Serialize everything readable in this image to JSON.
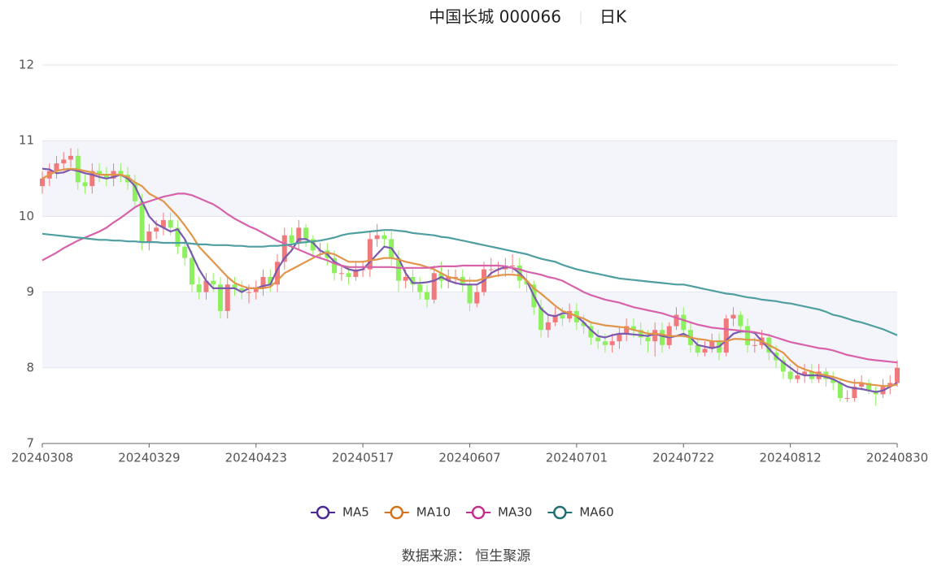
{
  "chart_data": {
    "type": "candlestick",
    "title": "中国长城 000066",
    "subtitle": "日K",
    "source": "数据来源： 恒生聚源",
    "categories": [
      "20240308",
      null,
      null,
      null,
      null,
      null,
      null,
      null,
      null,
      null,
      null,
      null,
      null,
      null,
      null,
      "20240329",
      null,
      null,
      null,
      null,
      null,
      null,
      null,
      null,
      null,
      null,
      null,
      null,
      null,
      null,
      "20240423",
      null,
      null,
      null,
      null,
      null,
      null,
      null,
      null,
      null,
      null,
      null,
      null,
      null,
      null,
      "20240517",
      null,
      null,
      null,
      null,
      null,
      null,
      null,
      null,
      null,
      null,
      null,
      null,
      null,
      null,
      "20240607",
      null,
      null,
      null,
      null,
      null,
      null,
      null,
      null,
      null,
      null,
      null,
      null,
      null,
      null,
      "20240701",
      null,
      null,
      null,
      null,
      null,
      null,
      null,
      null,
      null,
      null,
      null,
      null,
      null,
      null,
      "20240722",
      null,
      null,
      null,
      null,
      null,
      null,
      null,
      null,
      null,
      null,
      null,
      null,
      null,
      null,
      "20240812",
      null,
      null,
      null,
      null,
      null,
      null,
      null,
      null,
      null,
      null,
      null,
      null,
      null,
      null,
      "20240830"
    ],
    "open": [
      10.4,
      10.5,
      10.6,
      10.7,
      10.75,
      10.8,
      10.45,
      10.4,
      10.6,
      10.55,
      10.5,
      10.6,
      10.55,
      10.45,
      10.2,
      9.65,
      9.8,
      9.85,
      9.95,
      9.85,
      9.6,
      9.45,
      9.1,
      9.0,
      9.15,
      9.1,
      8.75,
      9.1,
      9.05,
      9.0,
      9.0,
      9.05,
      9.2,
      9.1,
      9.4,
      9.75,
      9.65,
      9.85,
      9.7,
      9.55,
      9.55,
      9.45,
      9.25,
      9.25,
      9.2,
      9.3,
      9.3,
      9.7,
      9.75,
      9.7,
      9.45,
      9.15,
      9.2,
      9.1,
      9.0,
      8.9,
      9.25,
      9.15,
      9.2,
      9.2,
      9.1,
      8.85,
      9.0,
      9.3,
      9.3,
      9.3,
      9.35,
      9.35,
      9.15,
      9.1,
      8.8,
      8.5,
      8.6,
      8.7,
      8.65,
      8.75,
      8.6,
      8.55,
      8.4,
      8.35,
      8.3,
      8.35,
      8.45,
      8.55,
      8.5,
      8.4,
      8.35,
      8.5,
      8.3,
      8.55,
      8.7,
      8.5,
      8.3,
      8.2,
      8.25,
      8.35,
      8.2,
      8.65,
      8.7,
      8.55,
      8.3,
      8.3,
      8.4,
      8.2,
      8.1,
      7.95,
      7.85,
      7.9,
      7.95,
      7.85,
      7.95,
      7.85,
      7.8,
      7.6,
      7.6,
      7.75,
      7.8,
      7.7,
      7.65,
      7.75,
      7.8
    ],
    "close": [
      10.5,
      10.6,
      10.7,
      10.75,
      10.8,
      10.45,
      10.4,
      10.6,
      10.55,
      10.5,
      10.6,
      10.55,
      10.45,
      10.2,
      9.65,
      9.8,
      9.85,
      9.95,
      9.85,
      9.6,
      9.45,
      9.1,
      9.0,
      9.15,
      9.1,
      8.75,
      9.1,
      9.05,
      9.0,
      9.0,
      9.05,
      9.2,
      9.1,
      9.4,
      9.75,
      9.65,
      9.85,
      9.7,
      9.55,
      9.55,
      9.45,
      9.25,
      9.25,
      9.2,
      9.3,
      9.3,
      9.7,
      9.75,
      9.7,
      9.45,
      9.15,
      9.2,
      9.1,
      9.0,
      8.9,
      9.25,
      9.15,
      9.2,
      9.2,
      9.1,
      8.85,
      9.0,
      9.3,
      9.3,
      9.3,
      9.35,
      9.35,
      9.15,
      9.1,
      8.8,
      8.5,
      8.6,
      8.7,
      8.65,
      8.75,
      8.6,
      8.55,
      8.4,
      8.35,
      8.3,
      8.35,
      8.45,
      8.55,
      8.5,
      8.4,
      8.35,
      8.5,
      8.3,
      8.55,
      8.7,
      8.5,
      8.3,
      8.2,
      8.25,
      8.35,
      8.2,
      8.65,
      8.7,
      8.55,
      8.3,
      8.3,
      8.4,
      8.2,
      8.1,
      7.95,
      7.85,
      7.9,
      7.95,
      7.85,
      7.95,
      7.85,
      7.8,
      7.6,
      7.6,
      7.75,
      7.8,
      7.7,
      7.65,
      7.75,
      7.8,
      8.0
    ],
    "high": [
      10.6,
      10.7,
      10.8,
      10.85,
      10.9,
      10.9,
      10.55,
      10.7,
      10.7,
      10.65,
      10.7,
      10.7,
      10.65,
      10.55,
      10.3,
      9.9,
      9.95,
      10.05,
      10.05,
      9.95,
      9.7,
      9.55,
      9.2,
      9.25,
      9.25,
      9.2,
      9.2,
      9.2,
      9.15,
      9.1,
      9.15,
      9.3,
      9.3,
      9.5,
      9.85,
      9.85,
      9.95,
      9.9,
      9.75,
      9.65,
      9.65,
      9.55,
      9.35,
      9.35,
      9.4,
      9.4,
      9.8,
      9.9,
      9.8,
      9.8,
      9.55,
      9.3,
      9.3,
      9.2,
      9.1,
      9.35,
      9.4,
      9.3,
      9.3,
      9.3,
      9.2,
      9.1,
      9.4,
      9.45,
      9.4,
      9.45,
      9.5,
      9.45,
      9.25,
      9.15,
      8.9,
      8.7,
      8.8,
      8.8,
      8.85,
      8.85,
      8.7,
      8.6,
      8.5,
      8.45,
      8.45,
      8.55,
      8.65,
      8.65,
      8.6,
      8.5,
      8.6,
      8.6,
      8.6,
      8.8,
      8.8,
      8.6,
      8.4,
      8.35,
      8.45,
      8.45,
      8.7,
      8.8,
      8.75,
      8.65,
      8.4,
      8.5,
      8.45,
      8.3,
      8.15,
      8.05,
      8.0,
      8.05,
      8.05,
      8.05,
      8.0,
      7.95,
      7.85,
      7.7,
      7.85,
      7.9,
      7.85,
      7.75,
      7.85,
      7.9,
      8.1
    ],
    "low": [
      10.3,
      10.4,
      10.5,
      10.6,
      10.65,
      10.35,
      10.3,
      10.3,
      10.45,
      10.4,
      10.4,
      10.45,
      10.35,
      10.1,
      9.55,
      9.55,
      9.7,
      9.75,
      9.75,
      9.5,
      9.35,
      9.0,
      8.9,
      8.9,
      9.0,
      8.65,
      8.65,
      8.95,
      8.9,
      8.85,
      8.9,
      8.95,
      9.0,
      9.0,
      9.3,
      9.55,
      9.55,
      9.6,
      9.45,
      9.45,
      9.35,
      9.15,
      9.15,
      9.1,
      9.15,
      9.2,
      9.2,
      9.6,
      9.6,
      9.35,
      9.0,
      9.05,
      9.0,
      8.9,
      8.8,
      8.85,
      9.05,
      9.05,
      9.1,
      9.0,
      8.75,
      8.8,
      8.95,
      9.2,
      9.2,
      9.2,
      9.25,
      9.05,
      9.0,
      8.7,
      8.4,
      8.4,
      8.55,
      8.55,
      8.6,
      8.5,
      8.45,
      8.3,
      8.25,
      8.2,
      8.2,
      8.25,
      8.35,
      8.4,
      8.3,
      8.2,
      8.15,
      8.2,
      8.25,
      8.5,
      8.4,
      8.2,
      8.15,
      8.15,
      8.2,
      8.1,
      8.15,
      8.55,
      8.45,
      8.2,
      8.2,
      8.25,
      8.1,
      8.0,
      7.85,
      7.8,
      7.8,
      7.8,
      7.8,
      7.8,
      7.75,
      7.7,
      7.55,
      7.55,
      7.55,
      7.7,
      7.65,
      7.5,
      7.6,
      7.65,
      7.75
    ],
    "up_color": "#f2797b",
    "down_color": "#8ff05f",
    "series": [
      {
        "name": "MA5",
        "color": "#7a5aae",
        "icon_color": "#4b2a93",
        "values": [
          10.63,
          10.62,
          10.57,
          10.58,
          10.62,
          10.6,
          10.57,
          10.55,
          10.52,
          10.5,
          10.52,
          10.55,
          10.5,
          10.4,
          10.2,
          10.0,
          9.9,
          9.85,
          9.8,
          9.83,
          9.7,
          9.5,
          9.3,
          9.15,
          9.05,
          9.05,
          9.05,
          9.05,
          9.0,
          9.05,
          9.05,
          9.08,
          9.1,
          9.3,
          9.45,
          9.55,
          9.7,
          9.7,
          9.65,
          9.55,
          9.5,
          9.4,
          9.35,
          9.3,
          9.28,
          9.3,
          9.4,
          9.5,
          9.6,
          9.58,
          9.45,
          9.25,
          9.12,
          9.12,
          9.13,
          9.15,
          9.2,
          9.15,
          9.12,
          9.1,
          9.1,
          9.1,
          9.15,
          9.25,
          9.3,
          9.33,
          9.32,
          9.25,
          9.15,
          8.95,
          8.78,
          8.7,
          8.68,
          8.72,
          8.72,
          8.68,
          8.6,
          8.5,
          8.42,
          8.4,
          8.43,
          8.45,
          8.45,
          8.44,
          8.43,
          8.42,
          8.45,
          8.42,
          8.4,
          8.42,
          8.45,
          8.4,
          8.3,
          8.28,
          8.26,
          8.28,
          8.36,
          8.45,
          8.48,
          8.48,
          8.46,
          8.35,
          8.25,
          8.15,
          8.07,
          8.0,
          7.93,
          7.9,
          7.9,
          7.9,
          7.88,
          7.85,
          7.8,
          7.75,
          7.73,
          7.72,
          7.7,
          7.68,
          7.7,
          7.75,
          7.8
        ]
      },
      {
        "name": "MA10",
        "color": "#e0954a",
        "icon_color": "#d2731d",
        "values": [
          10.5,
          10.55,
          10.6,
          10.62,
          10.63,
          10.62,
          10.6,
          10.58,
          10.55,
          10.55,
          10.55,
          10.55,
          10.52,
          10.45,
          10.4,
          10.3,
          10.25,
          10.2,
          10.1,
          10.0,
          9.88,
          9.75,
          9.6,
          9.5,
          9.4,
          9.3,
          9.2,
          9.12,
          9.08,
          9.05,
          9.05,
          9.05,
          9.07,
          9.15,
          9.25,
          9.3,
          9.35,
          9.4,
          9.45,
          9.5,
          9.52,
          9.5,
          9.45,
          9.4,
          9.4,
          9.4,
          9.42,
          9.43,
          9.45,
          9.45,
          9.43,
          9.4,
          9.38,
          9.36,
          9.33,
          9.3,
          9.25,
          9.2,
          9.18,
          9.15,
          9.15,
          9.15,
          9.18,
          9.2,
          9.22,
          9.23,
          9.23,
          9.22,
          9.15,
          9.05,
          8.98,
          8.9,
          8.82,
          8.75,
          8.72,
          8.68,
          8.65,
          8.6,
          8.58,
          8.56,
          8.55,
          8.54,
          8.53,
          8.5,
          8.48,
          8.45,
          8.45,
          8.44,
          8.42,
          8.42,
          8.42,
          8.4,
          8.38,
          8.37,
          8.35,
          8.35,
          8.35,
          8.38,
          8.38,
          8.37,
          8.37,
          8.35,
          8.3,
          8.25,
          8.2,
          8.1,
          8.02,
          7.98,
          7.95,
          7.92,
          7.9,
          7.88,
          7.85,
          7.82,
          7.8,
          7.8,
          7.78,
          7.77,
          7.76,
          7.76,
          7.78
        ]
      },
      {
        "name": "MA30",
        "color": "#d762aa",
        "icon_color": "#c62f8e",
        "values": [
          9.42,
          9.47,
          9.52,
          9.58,
          9.63,
          9.68,
          9.72,
          9.76,
          9.8,
          9.85,
          9.92,
          9.98,
          10.05,
          10.12,
          10.17,
          10.2,
          10.23,
          10.26,
          10.28,
          10.3,
          10.3,
          10.28,
          10.24,
          10.2,
          10.16,
          10.1,
          10.03,
          9.97,
          9.92,
          9.87,
          9.83,
          9.78,
          9.73,
          9.68,
          9.64,
          9.6,
          9.56,
          9.52,
          9.48,
          9.45,
          9.42,
          9.38,
          9.35,
          9.33,
          9.33,
          9.33,
          9.33,
          9.33,
          9.33,
          9.33,
          9.32,
          9.32,
          9.32,
          9.32,
          9.32,
          9.33,
          9.34,
          9.34,
          9.34,
          9.35,
          9.35,
          9.35,
          9.35,
          9.35,
          9.35,
          9.34,
          9.32,
          9.3,
          9.27,
          9.25,
          9.23,
          9.2,
          9.18,
          9.15,
          9.1,
          9.05,
          9.0,
          8.96,
          8.93,
          8.9,
          8.88,
          8.86,
          8.83,
          8.8,
          8.78,
          8.76,
          8.74,
          8.72,
          8.69,
          8.66,
          8.63,
          8.6,
          8.57,
          8.55,
          8.53,
          8.52,
          8.51,
          8.5,
          8.49,
          8.48,
          8.47,
          8.45,
          8.43,
          8.4,
          8.37,
          8.34,
          8.32,
          8.3,
          8.28,
          8.26,
          8.25,
          8.23,
          8.2,
          8.17,
          8.15,
          8.13,
          8.11,
          8.1,
          8.09,
          8.08,
          8.07
        ]
      },
      {
        "name": "MA60",
        "color": "#4f9ea0",
        "icon_color": "#1f6f74",
        "values": [
          9.77,
          9.76,
          9.75,
          9.74,
          9.73,
          9.72,
          9.71,
          9.7,
          9.69,
          9.69,
          9.68,
          9.68,
          9.67,
          9.67,
          9.66,
          9.66,
          9.66,
          9.65,
          9.65,
          9.65,
          9.65,
          9.64,
          9.63,
          9.63,
          9.62,
          9.62,
          9.62,
          9.61,
          9.61,
          9.6,
          9.6,
          9.6,
          9.61,
          9.61,
          9.62,
          9.63,
          9.65,
          9.66,
          9.67,
          9.68,
          9.7,
          9.72,
          9.75,
          9.77,
          9.78,
          9.79,
          9.8,
          9.81,
          9.82,
          9.82,
          9.81,
          9.8,
          9.78,
          9.77,
          9.76,
          9.75,
          9.73,
          9.72,
          9.7,
          9.68,
          9.66,
          9.64,
          9.62,
          9.6,
          9.58,
          9.56,
          9.54,
          9.52,
          9.5,
          9.47,
          9.44,
          9.42,
          9.4,
          9.36,
          9.33,
          9.3,
          9.28,
          9.26,
          9.24,
          9.22,
          9.2,
          9.18,
          9.17,
          9.16,
          9.15,
          9.14,
          9.13,
          9.12,
          9.11,
          9.1,
          9.1,
          9.08,
          9.06,
          9.04,
          9.02,
          9.0,
          8.98,
          8.97,
          8.95,
          8.93,
          8.92,
          8.9,
          8.89,
          8.88,
          8.86,
          8.85,
          8.83,
          8.81,
          8.79,
          8.77,
          8.74,
          8.7,
          8.68,
          8.65,
          8.62,
          8.6,
          8.57,
          8.54,
          8.51,
          8.47,
          8.43
        ]
      }
    ],
    "ylim": [
      7,
      12
    ],
    "yticks": [
      7,
      8,
      9,
      10,
      11,
      12
    ],
    "grid": true,
    "legend": "bottom"
  }
}
